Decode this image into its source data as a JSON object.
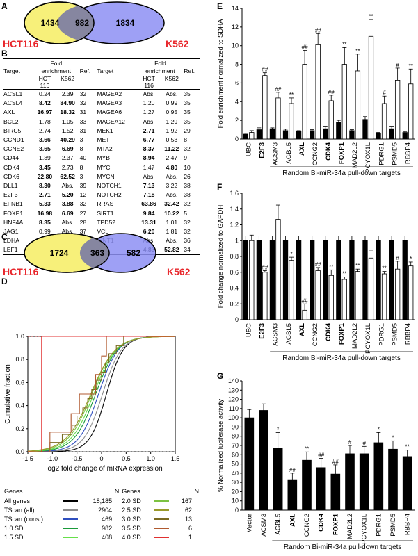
{
  "panel_labels": {
    "a": "A",
    "b": "B",
    "c": "C",
    "d": "D",
    "e": "E",
    "f": "F",
    "g": "G"
  },
  "venn_a": {
    "left": "1434",
    "center": "982",
    "right": "1834",
    "left_label": "HCT116",
    "right_label": "K562",
    "left_color": "#f7f07a",
    "right_color": "#8d8ff3",
    "label_color": "#e8262b"
  },
  "venn_c": {
    "left": "1724",
    "center": "363",
    "right": "582",
    "left_label": "HCT116",
    "right_label": "K562"
  },
  "table_b": {
    "headers": {
      "target": "Target",
      "fold": "Fold",
      "enrichment": "enrichment",
      "hct": "HCT",
      "hct2": "116",
      "k562": "K562",
      "ref": "Ref."
    },
    "rows": [
      [
        {
          "t": "ACSL1",
          "h": "0.24",
          "k": "2.39",
          "r": "32",
          "hb": false,
          "kb": false
        },
        {
          "t": "MAGEA2",
          "h": "Abs.",
          "k": "Abs.",
          "r": "35",
          "hb": false,
          "kb": false
        }
      ],
      [
        {
          "t": "ACSL4",
          "h": "8.42",
          "k": "84.90",
          "r": "32",
          "hb": true,
          "kb": true
        },
        {
          "t": "MAGEA3",
          "h": "1.20",
          "k": "0.99",
          "r": "35",
          "hb": false,
          "kb": false
        }
      ],
      [
        {
          "t": "AXL",
          "h": "16.97",
          "k": "18.32",
          "r": "31",
          "hb": true,
          "kb": true
        },
        {
          "t": "MAGEA6",
          "h": "1.27",
          "k": "0.95",
          "r": "35",
          "hb": false,
          "kb": false
        }
      ],
      [
        {
          "t": "BCL2",
          "h": "1.78",
          "k": "1.05",
          "r": "33",
          "hb": false,
          "kb": false
        },
        {
          "t": "MAGEA12",
          "h": "Abs.",
          "k": "1.29",
          "r": "35",
          "hb": false,
          "kb": false
        }
      ],
      [
        {
          "t": "BIRC5",
          "h": "2.74",
          "k": "1.52",
          "r": "31",
          "hb": false,
          "kb": false
        },
        {
          "t": "MEK1",
          "h": "2.71",
          "k": "1.92",
          "r": "29",
          "hb": true,
          "kb": false
        }
      ],
      [
        {
          "t": "CCND1",
          "h": "3.66",
          "k": "40.29",
          "r": "3",
          "hb": true,
          "kb": true
        },
        {
          "t": "MET",
          "h": "6.77",
          "k": "0.53",
          "r": "8",
          "hb": true,
          "kb": false
        }
      ],
      [
        {
          "t": "CCNE2",
          "h": "3.65",
          "k": "6.69",
          "r": "8",
          "hb": true,
          "kb": true
        },
        {
          "t": "MTA2",
          "h": "8.37",
          "k": "11.22",
          "r": "32",
          "hb": true,
          "kb": true
        }
      ],
      [
        {
          "t": "CD44",
          "h": "1.39",
          "k": "2.37",
          "r": "40",
          "hb": false,
          "kb": false
        },
        {
          "t": "MYB",
          "h": "8.94",
          "k": "2.47",
          "r": "9",
          "hb": true,
          "kb": false
        }
      ],
      [
        {
          "t": "CDK4",
          "h": "3.45",
          "k": "2.73",
          "r": "8",
          "hb": true,
          "kb": false
        },
        {
          "t": "MYC",
          "h": "1.47",
          "k": "4.80",
          "r": "10",
          "hb": false,
          "kb": true
        }
      ],
      [
        {
          "t": "CDK6",
          "h": "22.80",
          "k": "62.52",
          "r": "3",
          "hb": true,
          "kb": true
        },
        {
          "t": "MYCN",
          "h": "Abs.",
          "k": "Abs.",
          "r": "26",
          "hb": false,
          "kb": false
        }
      ],
      [
        {
          "t": "DLL1",
          "h": "8.30",
          "k": "Abs.",
          "r": "39",
          "hb": true,
          "kb": false
        },
        {
          "t": "NOTCH1",
          "h": "7.13",
          "k": "3.22",
          "r": "38",
          "hb": true,
          "kb": false
        }
      ],
      [
        {
          "t": "E2F3",
          "h": "2.71",
          "k": "5.20",
          "r": "12",
          "hb": true,
          "kb": true
        },
        {
          "t": "NOTCH2",
          "h": "7.18",
          "k": "Abs.",
          "r": "38",
          "hb": true,
          "kb": false
        }
      ],
      [
        {
          "t": "EFNB1",
          "h": "5.33",
          "k": "3.88",
          "r": "32",
          "hb": true,
          "kb": true
        },
        {
          "t": "RRAS",
          "h": "63.86",
          "k": "32.42",
          "r": "32",
          "hb": true,
          "kb": true
        }
      ],
      [
        {
          "t": "FOXP1",
          "h": "16.98",
          "k": "6.69",
          "r": "27",
          "hb": true,
          "kb": true
        },
        {
          "t": "SIRT1",
          "h": "9.84",
          "k": "10.22",
          "r": "5",
          "hb": true,
          "kb": true
        }
      ],
      [
        {
          "t": "HNF4A",
          "h": "8.35",
          "k": "Abs.",
          "r": "28",
          "hb": true,
          "kb": false
        },
        {
          "t": "TPD52",
          "h": "13.31",
          "k": "1.01",
          "r": "32",
          "hb": true,
          "kb": false
        }
      ],
      [
        {
          "t": "JAG1",
          "h": "0.99",
          "k": "Abs.",
          "r": "37",
          "hb": false,
          "kb": false
        },
        {
          "t": "VCL",
          "h": "6.20",
          "k": "1.81",
          "r": "32",
          "hb": true,
          "kb": false
        }
      ],
      [
        {
          "t": "LDHA",
          "h": "1.43",
          "k": "1.17",
          "r": "32",
          "hb": false,
          "kb": false
        },
        {
          "t": "WNT1",
          "h": "Abs.",
          "k": "Abs.",
          "r": "36",
          "hb": false,
          "kb": false
        }
      ],
      [
        {
          "t": "LEF1",
          "h": "Abs.",
          "k": "32.65",
          "r": "32",
          "hb": false,
          "kb": true
        },
        {
          "t": "YY1",
          "h": "4.83",
          "k": "52.82",
          "r": "34",
          "hb": true,
          "kb": true
        }
      ]
    ]
  },
  "legend_d": {
    "headers": {
      "genes": "Genes",
      "n": "N"
    },
    "rows": [
      [
        {
          "g": "All genes",
          "n": "18,185",
          "c": "#000000"
        },
        {
          "g": "2.0 SD",
          "n": "167",
          "c": "#7cc242"
        }
      ],
      [
        {
          "g": "TScan (all)",
          "n": "2904",
          "c": "#8c8c8c"
        },
        {
          "g": "2.5 SD",
          "n": "62",
          "c": "#9a9a2a"
        }
      ],
      [
        {
          "g": "TScan (cons.)",
          "n": "469",
          "c": "#2f4fbf"
        },
        {
          "g": "3.0 SD",
          "n": "13",
          "c": "#7a6a20"
        }
      ],
      [
        {
          "g": "1.0 SD",
          "n": "982",
          "c": "#1a9a3a"
        },
        {
          "g": "3.5 SD",
          "n": "6",
          "c": "#b05a30"
        }
      ],
      [
        {
          "g": "1.5 SD",
          "n": "408",
          "c": "#66e04a"
        },
        {
          "g": "4.0 SD",
          "n": "1",
          "c": "#e03030"
        }
      ]
    ]
  },
  "chart_data": [
    {
      "type": "line",
      "panel": "D",
      "xlabel": "log2 fold change of mRNA expression",
      "ylabel": "Cumulative fraction",
      "xlim": [
        -1.5,
        1.5
      ],
      "ylim": [
        0,
        1
      ],
      "xticks": [
        "-1.5",
        "-1.0",
        "-0.5",
        "0",
        "0.5",
        "1.0",
        "1.5"
      ],
      "yticks": [
        "0.0",
        "0.2",
        "0.4",
        "0.6",
        "0.8",
        "1.0"
      ],
      "series": [
        {
          "label": "All genes",
          "color": "#000000",
          "mid": 0.1,
          "scale": 0.17
        },
        {
          "label": "TScan (all)",
          "color": "#8c8c8c",
          "mid": 0.02,
          "scale": 0.19
        },
        {
          "label": "TScan (cons.)",
          "color": "#2f4fbf",
          "mid": -0.06,
          "scale": 0.2
        },
        {
          "label": "1.0 SD",
          "color": "#1a9a3a",
          "mid": -0.12,
          "scale": 0.22
        },
        {
          "label": "1.5 SD",
          "color": "#66e04a",
          "mid": -0.16,
          "scale": 0.23
        },
        {
          "label": "2.0 SD",
          "color": "#7cc242",
          "mid": -0.2,
          "scale": 0.24
        },
        {
          "label": "2.5 SD",
          "color": "#9a9a2a",
          "mid": -0.22,
          "scale": 0.25
        }
      ],
      "steps": [
        {
          "label": "3.0 SD",
          "color": "#7a6a20",
          "x": [
            -1.05,
            -0.8,
            -0.6,
            -0.5,
            -0.38,
            -0.28,
            -0.2,
            -0.1,
            0.0,
            0.08,
            0.15,
            0.3,
            0.45
          ],
          "y": [
            0.08,
            0.15,
            0.23,
            0.31,
            0.38,
            0.46,
            0.54,
            0.62,
            0.69,
            0.77,
            0.85,
            0.92,
            1.0
          ]
        },
        {
          "label": "3.5 SD",
          "color": "#b05a30",
          "x": [
            -1.05,
            -0.62,
            -0.45,
            -0.12,
            0.0,
            0.1
          ],
          "y": [
            0.17,
            0.33,
            0.5,
            0.67,
            0.83,
            1.0
          ]
        },
        {
          "label": "4.0 SD",
          "color": "#e03030",
          "x": [
            -1.22
          ],
          "y": [
            1.0
          ]
        }
      ]
    },
    {
      "type": "bar",
      "panel": "E",
      "ylabel": "Fold enrichment normalized to SDHA",
      "ylim": [
        0,
        14
      ],
      "yticks": [
        "0",
        "2",
        "4",
        "6",
        "8",
        "10",
        "12",
        "14"
      ],
      "categories": [
        "UBC",
        "E2F3",
        "ACSM3",
        "AGBL5",
        "AXL",
        "CCNG2",
        "CDK4",
        "FOXP1",
        "MAD2L2",
        "PCYOX1L",
        "PDRG1",
        "PSMD5",
        "RBBP4"
      ],
      "bold": [
        false,
        true,
        false,
        false,
        true,
        false,
        true,
        true,
        false,
        false,
        false,
        false,
        false
      ],
      "series": [
        {
          "values": [
            0.5,
            1.0,
            1.1,
            0.9,
            0.8,
            0.9,
            1.1,
            1.8,
            0.9,
            2.1,
            0.6,
            1.1,
            0.7
          ],
          "errors": [
            0.1,
            0.2,
            0.1,
            0.15,
            0.1,
            0.1,
            0.2,
            0.2,
            0.1,
            0.3,
            0.1,
            0.2,
            0.1
          ],
          "color": "#000000"
        },
        {
          "values": [
            0.7,
            6.8,
            4.4,
            3.8,
            8.0,
            10.1,
            4.1,
            8.0,
            7.3,
            11.0,
            3.8,
            6.3,
            5.9
          ],
          "errors": [
            0.2,
            0.3,
            0.6,
            0.6,
            1.5,
            1.2,
            0.6,
            1.8,
            1.8,
            1.8,
            0.8,
            1.3,
            1.6
          ],
          "color": "#ffffff"
        }
      ],
      "annotations": [
        "",
        "##",
        "##",
        "**",
        "##",
        "##",
        "##",
        "**",
        "**",
        "**",
        "#",
        "#",
        "**"
      ],
      "group_label": "Random Bi-miR-34a pull-down targets"
    },
    {
      "type": "bar",
      "panel": "F",
      "ylabel": "Fold change normalized to GAPDH",
      "ylim": [
        0,
        1.6
      ],
      "yticks": [
        "0",
        "0.2",
        "0.4",
        "0.6",
        "0.8",
        "1",
        "1.2",
        "1.4",
        "1.6"
      ],
      "categories": [
        "UBC",
        "E2F3",
        "ACSM3",
        "AGBL5",
        "AXL",
        "CCNG2",
        "CDK4",
        "FOXP1",
        "MAD2L2",
        "PCYOX1L",
        "PDRG1",
        "PSMD5",
        "RBBP4"
      ],
      "bold": [
        false,
        true,
        false,
        false,
        true,
        false,
        true,
        true,
        false,
        false,
        false,
        false,
        false
      ],
      "series": [
        {
          "values": [
            1.0,
            1.0,
            1.0,
            1.0,
            1.0,
            1.0,
            1.0,
            1.0,
            1.0,
            1.0,
            1.0,
            1.0,
            1.0
          ],
          "errors": [
            0.06,
            0.06,
            0.06,
            0.06,
            0.06,
            0.06,
            0.06,
            0.06,
            0.06,
            0.06,
            0.06,
            0.06,
            0.06
          ],
          "color": "#000000"
        },
        {
          "values": [
            1.0,
            0.6,
            1.27,
            0.75,
            0.12,
            0.62,
            0.56,
            0.51,
            0.61,
            0.78,
            0.58,
            0.64,
            0.68
          ],
          "errors": [
            0.07,
            0.02,
            0.18,
            0.04,
            0.08,
            0.04,
            0.07,
            0.03,
            0.03,
            0.1,
            0.03,
            0.1,
            0.05
          ],
          "color": "#ffffff"
        }
      ],
      "annotations": [
        "",
        "##",
        "",
        "*",
        "##",
        "##",
        "**",
        "**",
        "**",
        "",
        "**",
        "#",
        "*"
      ],
      "group_label": "Random Bi-miR-34a pull-down targets"
    },
    {
      "type": "bar",
      "panel": "G",
      "ylabel": "% Normalized luciferase activity",
      "ylim": [
        0,
        140
      ],
      "yticks": [
        "0",
        "10",
        "20",
        "30",
        "40",
        "50",
        "60",
        "70",
        "80",
        "90",
        "100",
        "110",
        "120",
        "130",
        "140"
      ],
      "categories": [
        "Vector",
        "ACSM3",
        "AGBL5",
        "AXL",
        "CCNG2",
        "CDK4",
        "FOXP1",
        "MAD2L2",
        "PCYOX1L",
        "PDRG1",
        "PSMD5",
        "RBBP4"
      ],
      "bold": [
        false,
        false,
        false,
        true,
        false,
        true,
        true,
        false,
        false,
        false,
        false,
        false
      ],
      "series": [
        {
          "values": [
            100,
            108,
            67,
            33,
            54,
            46,
            39,
            61,
            61,
            73,
            66,
            58
          ],
          "errors": [
            9,
            7,
            17,
            7,
            9,
            10,
            10,
            9,
            8,
            11,
            9,
            7
          ],
          "color": "#000000"
        }
      ],
      "annotations": [
        "",
        "",
        "*",
        "##",
        "**",
        "##",
        "##",
        "#",
        "#",
        "*",
        "*",
        "**"
      ],
      "group_label": "Random Bi-miR-34a pull-down targets"
    }
  ]
}
